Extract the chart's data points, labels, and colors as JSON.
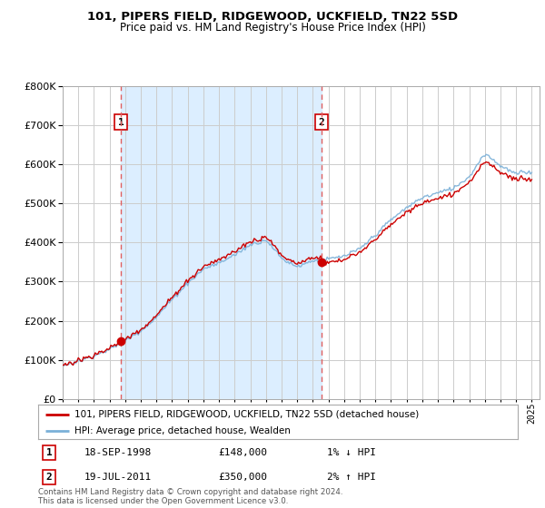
{
  "title": "101, PIPERS FIELD, RIDGEWOOD, UCKFIELD, TN22 5SD",
  "subtitle": "Price paid vs. HM Land Registry's House Price Index (HPI)",
  "legend_line1": "101, PIPERS FIELD, RIDGEWOOD, UCKFIELD, TN22 5SD (detached house)",
  "legend_line2": "HPI: Average price, detached house, Wealden",
  "footnote": "Contains HM Land Registry data © Crown copyright and database right 2024.\nThis data is licensed under the Open Government Licence v3.0.",
  "marker1_date": "18-SEP-1998",
  "marker1_price": "£148,000",
  "marker1_hpi": "1% ↓ HPI",
  "marker2_date": "19-JUL-2011",
  "marker2_price": "£350,000",
  "marker2_hpi": "2% ↑ HPI",
  "sale1_x": 1998.72,
  "sale1_y": 148000,
  "sale2_x": 2011.55,
  "sale2_y": 350000,
  "hpi_color": "#7ab0d8",
  "price_color": "#cc0000",
  "vline_color": "#e06060",
  "shade_color": "#dceeff",
  "bg_color": "#ffffff",
  "grid_color": "#cccccc",
  "ylim": [
    0,
    800000
  ],
  "xlim": [
    1995.0,
    2025.5
  ],
  "yticks": [
    0,
    100000,
    200000,
    300000,
    400000,
    500000,
    600000,
    700000,
    800000
  ]
}
